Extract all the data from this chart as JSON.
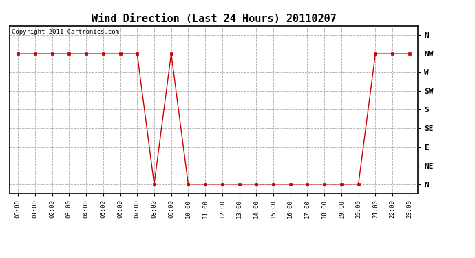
{
  "title": "Wind Direction (Last 24 Hours) 20110207",
  "copyright_text": "Copyright 2011 Cartronics.com",
  "background_color": "#ffffff",
  "line_color": "#cc0000",
  "grid_color": "#aaaaaa",
  "x_labels": [
    "00:00",
    "01:00",
    "02:00",
    "03:00",
    "04:00",
    "05:00",
    "06:00",
    "07:00",
    "08:00",
    "09:00",
    "10:00",
    "11:00",
    "12:00",
    "13:00",
    "14:00",
    "15:00",
    "16:00",
    "17:00",
    "18:00",
    "19:00",
    "20:00",
    "21:00",
    "22:00",
    "23:00"
  ],
  "y_ticks": [
    0,
    1,
    2,
    3,
    4,
    5,
    6,
    7,
    8
  ],
  "y_labels": [
    "N",
    "NE",
    "E",
    "SE",
    "S",
    "SW",
    "W",
    "NW",
    "N"
  ],
  "hours": [
    0,
    1,
    2,
    3,
    4,
    5,
    6,
    7,
    8,
    9,
    10,
    11,
    12,
    13,
    14,
    15,
    16,
    17,
    18,
    19,
    20,
    21,
    22,
    23
  ],
  "values": [
    7,
    7,
    7,
    7,
    7,
    7,
    7,
    7,
    0,
    7,
    0,
    0,
    0,
    0,
    0,
    0,
    0,
    0,
    0,
    0,
    0,
    7,
    7,
    7
  ],
  "title_fontsize": 11,
  "copyright_fontsize": 6.5,
  "tick_fontsize": 6.5,
  "ytick_fontsize": 8
}
